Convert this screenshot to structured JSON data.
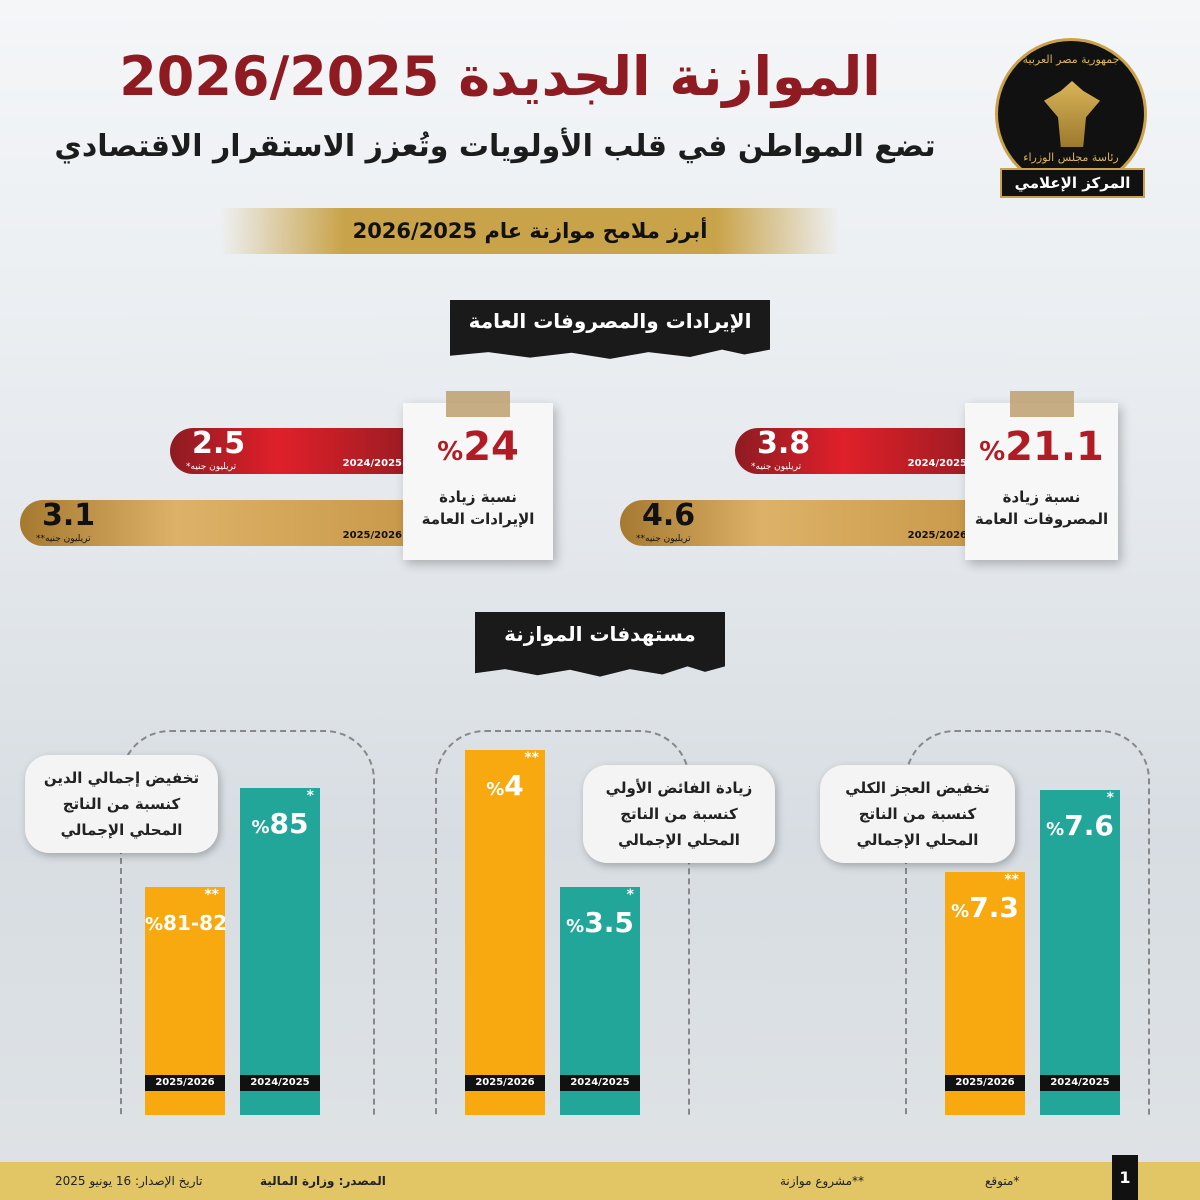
{
  "header": {
    "title": "الموازنة الجديدة 2026/2025",
    "subtitle": "تضع المواطن في قلب الأولويات وتُعزز الاستقرار الاقتصادي"
  },
  "logo": {
    "top_text": "جمهورية مصر العربية",
    "bottom_text": "رئاسة مجلس الوزراء",
    "banner": "المركز الإعلامي"
  },
  "banner": "أبرز ملامح موازنة عام 2026/2025",
  "section1": {
    "title": "الإيرادات والمصروفات العامة",
    "revenue": {
      "pct": "24",
      "pct_sign": "%",
      "label_line1": "نسبة زيادة",
      "label_line2": "الإيرادات العامة",
      "bars": [
        {
          "year": "2024/2025",
          "value": "2.5",
          "unit": "تريليون جنيه*"
        },
        {
          "year": "2025/2026",
          "value": "3.1",
          "unit": "تريليون جنيه**"
        }
      ]
    },
    "expenditure": {
      "pct": "21.1",
      "pct_sign": "%",
      "label_line1": "نسبة زيادة",
      "label_line2": "المصروفات العامة",
      "bars": [
        {
          "year": "2024/2025",
          "value": "3.8",
          "unit": "تريليون جنيه*"
        },
        {
          "year": "2025/2026",
          "value": "4.6",
          "unit": "تريليون جنيه**"
        }
      ]
    }
  },
  "section2": {
    "title": "مستهدفات الموازنة",
    "groups": [
      {
        "title_lines": [
          "تخفيض إجمالي الدين",
          "كنسبة من الناتج",
          "المحلي الإجمالي"
        ],
        "bars": [
          {
            "year": "2025/2026",
            "value": "81-82",
            "pct": "%",
            "mark": "**",
            "color": "#f7a90f"
          },
          {
            "year": "2024/2025",
            "value": "85",
            "pct": "%",
            "mark": "*",
            "color": "#22a699"
          }
        ]
      },
      {
        "title_lines": [
          "زيادة الفائض الأولي",
          "كنسبة من الناتج",
          "المحلي الإجمالي"
        ],
        "bars": [
          {
            "year": "2025/2026",
            "value": "4",
            "pct": "%",
            "mark": "**",
            "color": "#f7a90f"
          },
          {
            "year": "2024/2025",
            "value": "3.5",
            "pct": "%",
            "mark": "*",
            "color": "#22a699"
          }
        ]
      },
      {
        "title_lines": [
          "تخفيض العجز الكلي",
          "كنسبة من الناتج",
          "المحلي الإجمالي"
        ],
        "bars": [
          {
            "year": "2025/2026",
            "value": "7.3",
            "pct": "%",
            "mark": "**",
            "color": "#f7a90f"
          },
          {
            "year": "2024/2025",
            "value": "7.6",
            "pct": "%",
            "mark": "*",
            "color": "#22a699"
          }
        ]
      }
    ]
  },
  "footer": {
    "page": "1",
    "note1": "*متوقع",
    "note2": "**مشروع موازنة",
    "source": "المصدر: وزارة المالية",
    "date": "تاريخ الإصدار: 16 يونيو 2025"
  },
  "colors": {
    "title_red": "#8e1b22",
    "orange": "#f7a90f",
    "teal": "#22a699",
    "gold": "#c9a34a"
  }
}
